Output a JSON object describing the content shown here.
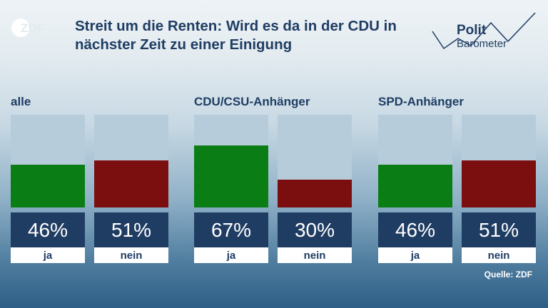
{
  "brand": {
    "zdf_logo_text": "ZDF",
    "polit_text": "Polit",
    "barometer_text": "Barometer"
  },
  "chart_data": {
    "type": "bar",
    "title": "Streit um die Renten: Wird es da in der CDU in nächster Zeit zu einer Einigung",
    "ylim": [
      0,
      100
    ],
    "categories": [
      "ja",
      "nein"
    ],
    "groups": [
      {
        "label": "alle",
        "values": [
          46,
          51
        ],
        "value_labels": [
          "46%",
          "51%"
        ]
      },
      {
        "label": "CDU/CSU-Anhänger",
        "values": [
          67,
          30
        ],
        "value_labels": [
          "67%",
          "30%"
        ]
      },
      {
        "label": "SPD-Anhänger",
        "values": [
          46,
          51
        ],
        "value_labels": [
          "46%",
          "51%"
        ]
      }
    ],
    "colors": {
      "ja": "#0a7d14",
      "nein": "#7b0f10",
      "track": "#b7ccda"
    },
    "source": "Quelle: ZDF"
  }
}
